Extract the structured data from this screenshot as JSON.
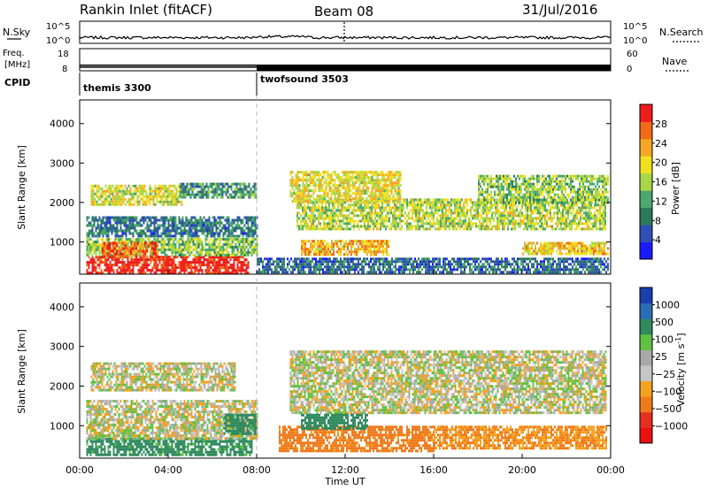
{
  "header": {
    "title": "Rankin Inlet (fitACF)",
    "beam": "Beam 08",
    "date": "31/Jul/2016"
  },
  "top_panels": {
    "nsky_label": "N.Sky",
    "nsky_ticks": [
      "10^5",
      "10^0"
    ],
    "nsearch_label": "N.Search",
    "nsearch_ticks": [
      "10^5",
      "10^0"
    ],
    "freq_label": "Freq.",
    "freq_unit": "[MHz]",
    "freq_ticks": [
      "18",
      "8"
    ],
    "nave_label": "Nave",
    "nave_ticks": [
      "60",
      "0"
    ],
    "cpid_label": "CPID",
    "cpid_segments": [
      {
        "name": "themis 3300",
        "start_hour": 0,
        "end_hour": 8
      },
      {
        "name": "twofsound 3503",
        "start_hour": 8,
        "end_hour": 24
      }
    ],
    "mode_change_hour": 8,
    "freq_mhz": 10.5,
    "nave_count": 14
  },
  "colors": {
    "power_scale": [
      "#1a1aff",
      "#2e4fb5",
      "#2d7a5a",
      "#4aa870",
      "#a8d648",
      "#f0e020",
      "#f5a623",
      "#f06a18",
      "#ee1c1c"
    ],
    "velocity_scale": [
      "#1a3fb0",
      "#2a6db5",
      "#2f8a5e",
      "#5fc142",
      "#a9a9a9",
      "#c6c6c6",
      "#f5a21e",
      "#ef7a1b",
      "#e53020",
      "#e81010"
    ]
  },
  "chart_data": [
    {
      "type": "heatmap",
      "quantity": "Power",
      "xlabel": "Time UT",
      "ylabel": "Slant Range [km]",
      "xlim_hours": [
        0,
        24
      ],
      "ylim": [
        180,
        4600
      ],
      "x_ticks": [
        "00:00",
        "04:00",
        "08:00",
        "12:00",
        "16:00",
        "20:00",
        "00:00"
      ],
      "y_ticks": [
        1000,
        2000,
        3000,
        4000
      ],
      "colorbar": {
        "label": "Power [dB]",
        "ticks": [
          4,
          8,
          12,
          16,
          20,
          24,
          28
        ],
        "range": [
          0,
          30
        ]
      },
      "regions": [
        {
          "t0": 0.3,
          "t1": 7.6,
          "r0": 220,
          "r1": 650,
          "value": 29
        },
        {
          "t0": 0.3,
          "t1": 8.0,
          "r0": 650,
          "r1": 1100,
          "value": 14
        },
        {
          "t0": 1.0,
          "t1": 3.5,
          "r0": 650,
          "r1": 1000,
          "value": 25
        },
        {
          "t0": 0.3,
          "t1": 8.0,
          "r0": 1150,
          "r1": 1650,
          "value": 8
        },
        {
          "t0": 0.5,
          "t1": 4.6,
          "r0": 1950,
          "r1": 2450,
          "value": 17
        },
        {
          "t0": 4.5,
          "t1": 8.0,
          "r0": 2100,
          "r1": 2500,
          "value": 10
        },
        {
          "t0": 9.8,
          "t1": 23.8,
          "r0": 1350,
          "r1": 2100,
          "value": 16
        },
        {
          "t0": 9.5,
          "t1": 14.5,
          "r0": 2000,
          "r1": 2800,
          "value": 18
        },
        {
          "t0": 10.0,
          "t1": 14.0,
          "r0": 700,
          "r1": 1050,
          "value": 21
        },
        {
          "t0": 18.0,
          "t1": 23.9,
          "r0": 2000,
          "r1": 2700,
          "value": 14
        },
        {
          "t0": 20.0,
          "t1": 23.9,
          "r0": 700,
          "r1": 1000,
          "value": 20
        },
        {
          "t0": 8.0,
          "t1": 23.9,
          "r0": 200,
          "r1": 600,
          "value": 7
        }
      ]
    },
    {
      "type": "heatmap",
      "quantity": "Velocity",
      "xlabel": "Time UT",
      "ylabel": "Slant Range [km]",
      "xlim_hours": [
        0,
        24
      ],
      "ylim": [
        180,
        4600
      ],
      "x_ticks": [
        "00:00",
        "04:00",
        "08:00",
        "12:00",
        "16:00",
        "20:00",
        "00:00"
      ],
      "y_ticks": [
        1000,
        2000,
        3000,
        4000
      ],
      "colorbar": {
        "label": "Velocity [m s",
        "label_exp": "-1",
        "label_end": "]",
        "ticks": [
          "1000",
          "500",
          "100",
          "25",
          "−25",
          "−100",
          "−500",
          "−1000"
        ]
      },
      "regions": [
        {
          "t0": 0.3,
          "t1": 7.8,
          "r0": 250,
          "r1": 700,
          "value": 150
        },
        {
          "t0": 0.3,
          "t1": 8.0,
          "r0": 700,
          "r1": 1650,
          "value": 0
        },
        {
          "t0": 0.5,
          "t1": 7.0,
          "r0": 1900,
          "r1": 2600,
          "value": 0
        },
        {
          "t0": 6.5,
          "t1": 8.0,
          "r0": 800,
          "r1": 1300,
          "value": 400
        },
        {
          "t0": 9.5,
          "t1": 23.8,
          "r0": 1300,
          "r1": 2900,
          "value": 0
        },
        {
          "t0": 9.0,
          "t1": 16.0,
          "r0": 350,
          "r1": 1000,
          "value": -150
        },
        {
          "t0": 16.0,
          "t1": 23.8,
          "r0": 400,
          "r1": 1000,
          "value": -100
        },
        {
          "t0": 10.0,
          "t1": 13.0,
          "r0": 900,
          "r1": 1300,
          "value": 300
        }
      ]
    }
  ]
}
